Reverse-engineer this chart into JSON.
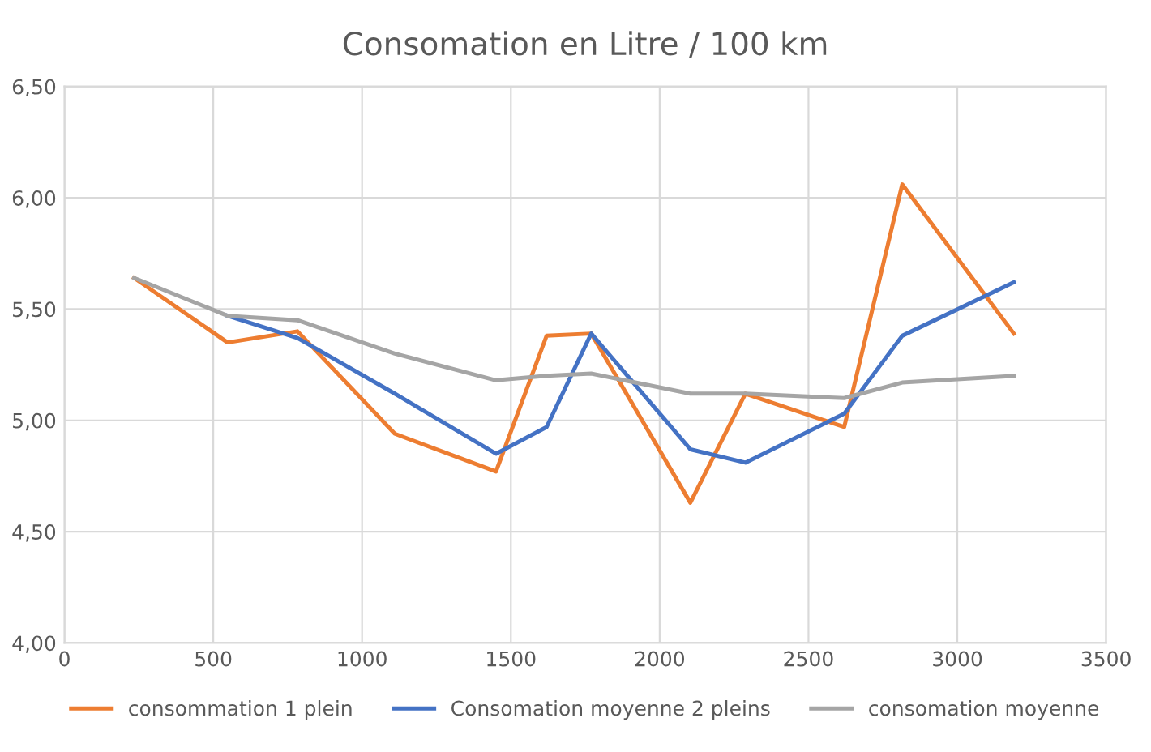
{
  "chart_data": {
    "type": "line",
    "title": "Consomation en Litre / 100 km",
    "x": [
      234,
      548,
      783,
      1110,
      1450,
      1620,
      1770,
      2103,
      2288,
      2620,
      2815,
      3190
    ],
    "series": [
      {
        "name": "consommation 1 plein",
        "color": "#ed7d31",
        "values": [
          5.64,
          5.35,
          5.4,
          4.94,
          4.77,
          5.38,
          5.39,
          4.63,
          5.12,
          4.97,
          6.06,
          5.39
        ]
      },
      {
        "name": "Consomation moyenne 2 pleins",
        "color": "#4472c4",
        "values": [
          null,
          5.47,
          5.37,
          5.12,
          4.85,
          4.97,
          5.39,
          4.87,
          4.81,
          5.03,
          5.38,
          5.62
        ]
      },
      {
        "name": "consomation moyenne",
        "color": "#a5a5a5",
        "values": [
          5.64,
          5.47,
          5.45,
          5.3,
          5.18,
          5.2,
          5.21,
          5.12,
          5.12,
          5.1,
          5.17,
          5.2
        ]
      }
    ],
    "xlim": [
      0,
      3500
    ],
    "xticks": [
      0,
      500,
      1000,
      1500,
      2000,
      2500,
      3000,
      3500
    ],
    "ylim": [
      4.0,
      6.5
    ],
    "yticks": [
      {
        "value": 4.0,
        "label": "4,00"
      },
      {
        "value": 4.5,
        "label": "4,50"
      },
      {
        "value": 5.0,
        "label": "5,00"
      },
      {
        "value": 5.5,
        "label": "5,50"
      },
      {
        "value": 6.0,
        "label": "6,00"
      },
      {
        "value": 6.5,
        "label": "6,50"
      }
    ],
    "grid": true,
    "legend": "bottom",
    "marker": "none",
    "line_style": "solid"
  }
}
